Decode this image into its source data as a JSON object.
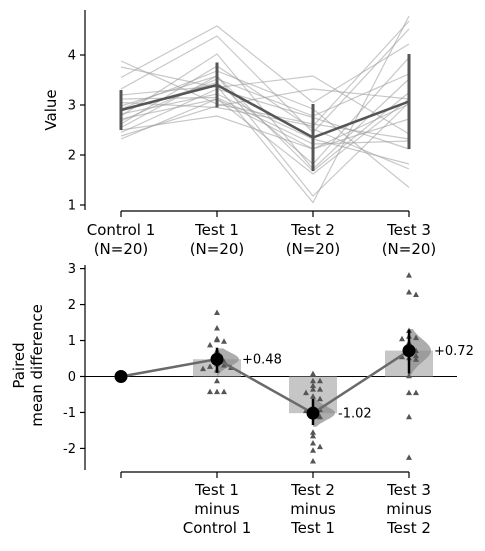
{
  "chart_data": [
    {
      "type": "line",
      "panel": "paired-observations",
      "ylabel": "Value",
      "ylim": [
        0.9,
        4.9
      ],
      "yticks": [
        1,
        2,
        3,
        4
      ],
      "categories": [
        "Control 1",
        "Test 1",
        "Test 2",
        "Test 3"
      ],
      "category_labels": [
        [
          "Control 1",
          "(N=20)"
        ],
        [
          "Test 1",
          "(N=20)"
        ],
        [
          "Test 2",
          "(N=20)"
        ],
        [
          "Test 3",
          "(N=20)"
        ]
      ],
      "paired_lines": [
        [
          3.88,
          3.02,
          2.62,
          2.32
        ],
        [
          3.76,
          3.35,
          3.58,
          2.42
        ],
        [
          3.55,
          4.58,
          3.05,
          4.22
        ],
        [
          3.32,
          4.38,
          2.45,
          4.52
        ],
        [
          3.2,
          3.38,
          1.05,
          4.78
        ],
        [
          3.12,
          3.15,
          2.22,
          2.28
        ],
        [
          3.05,
          2.95,
          2.58,
          4.68
        ],
        [
          2.98,
          3.58,
          1.18,
          3.05
        ],
        [
          2.92,
          3.68,
          2.92,
          1.35
        ],
        [
          2.88,
          3.45,
          1.82,
          3.95
        ],
        [
          2.82,
          3.22,
          2.32,
          1.82
        ],
        [
          2.78,
          4.02,
          1.72,
          3.52
        ],
        [
          2.72,
          3.12,
          2.12,
          2.72
        ],
        [
          2.68,
          3.52,
          2.78,
          3.62
        ],
        [
          2.62,
          3.78,
          2.52,
          1.72
        ],
        [
          2.55,
          3.58,
          1.68,
          3.25
        ],
        [
          2.5,
          2.78,
          2.12,
          3.02
        ],
        [
          2.45,
          3.32,
          2.75,
          2.12
        ],
        [
          2.38,
          2.98,
          3.32,
          3.12
        ],
        [
          2.32,
          3.12,
          1.62,
          3.12
        ]
      ],
      "summary": {
        "means": [
          2.9,
          3.4,
          2.35,
          3.07
        ],
        "lower": [
          2.5,
          2.95,
          1.68,
          2.12
        ],
        "upper": [
          3.3,
          3.85,
          3.02,
          4.02
        ]
      }
    },
    {
      "type": "scatter",
      "panel": "paired-mean-difference",
      "ylabel": [
        "Paired",
        "mean difference"
      ],
      "ylim": [
        -2.6,
        3.1
      ],
      "yticks": [
        -2,
        -1,
        0,
        1,
        2,
        3
      ],
      "categories": [
        "Control 1",
        "Test 1 minus Control 1",
        "Test 2 minus Test 1",
        "Test 3 minus Test 2"
      ],
      "category_labels": [
        [],
        [
          "Test 1",
          "minus",
          "Control 1"
        ],
        [
          "Test 2",
          "minus",
          "Test 1"
        ],
        [
          "Test 3",
          "minus",
          "Test 2"
        ]
      ],
      "mean_differences": [
        0,
        0.48,
        -1.02,
        0.72
      ],
      "difference_labels": [
        "",
        "+0.48",
        "-1.02",
        "+0.72"
      ],
      "ci": [
        [
          0,
          0
        ],
        [
          0.1,
          0.8
        ],
        [
          -1.35,
          -0.62
        ],
        [
          0.08,
          1.3
        ]
      ],
      "bootstrap_distribution_range": [
        [
          0,
          0
        ],
        [
          0.02,
          0.78
        ],
        [
          -1.4,
          -0.62
        ],
        [
          0.05,
          1.32
        ]
      ],
      "individual_differences": [
        [],
        [
          1.78,
          1.35,
          1.05,
          1.02,
          0.98,
          0.88,
          0.72,
          0.65,
          0.52,
          0.42,
          0.35,
          0.32,
          0.28,
          0.25,
          0.22,
          0.18,
          -0.12,
          -0.42,
          -0.42,
          -0.42
        ],
        [
          0.08,
          -0.12,
          -0.12,
          -0.25,
          -0.35,
          -0.35,
          -0.45,
          -0.55,
          -0.62,
          -0.85,
          -0.92,
          -0.95,
          -1.05,
          -1.12,
          -1.55,
          -1.65,
          -1.85,
          -1.95,
          -2.05,
          -2.35
        ],
        [
          2.82,
          2.35,
          2.28,
          1.28,
          1.12,
          1.08,
          1.05,
          0.95,
          0.78,
          0.72,
          0.65,
          0.58,
          0.55,
          0.52,
          0.48,
          0.02,
          -0.45,
          -0.45,
          -1.12,
          -2.25
        ]
      ]
    }
  ]
}
